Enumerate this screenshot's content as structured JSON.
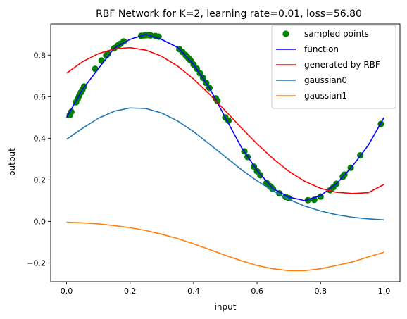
{
  "chart_data": {
    "type": "line",
    "title": "RBF Network for K=2, learning rate=0.01, loss=56.80",
    "xlabel": "input",
    "ylabel": "output",
    "xlim": [
      -0.05,
      1.05
    ],
    "ylim": [
      -0.29,
      0.95
    ],
    "xticks": [
      0.0,
      0.2,
      0.4,
      0.6,
      0.8,
      1.0
    ],
    "xtick_labels": [
      "0.0",
      "0.2",
      "0.4",
      "0.6",
      "0.8",
      "1.0"
    ],
    "yticks": [
      -0.2,
      0.0,
      0.2,
      0.4,
      0.6,
      0.8
    ],
    "ytick_labels": [
      "−0.2",
      "0.0",
      "0.2",
      "0.4",
      "0.6",
      "0.8"
    ],
    "grid": false,
    "legend_position": "top-right",
    "series": [
      {
        "name": "sampled points",
        "kind": "scatter",
        "color": "#008000",
        "x": [
          0.01,
          0.015,
          0.03,
          0.035,
          0.04,
          0.045,
          0.05,
          0.055,
          0.09,
          0.11,
          0.125,
          0.13,
          0.15,
          0.16,
          0.165,
          0.17,
          0.18,
          0.235,
          0.245,
          0.25,
          0.26,
          0.265,
          0.28,
          0.29,
          0.355,
          0.365,
          0.375,
          0.38,
          0.385,
          0.39,
          0.4,
          0.41,
          0.42,
          0.43,
          0.44,
          0.45,
          0.47,
          0.475,
          0.5,
          0.51,
          0.56,
          0.57,
          0.59,
          0.6,
          0.61,
          0.63,
          0.64,
          0.645,
          0.65,
          0.67,
          0.69,
          0.7,
          0.76,
          0.78,
          0.8,
          0.83,
          0.84,
          0.85,
          0.87,
          0.875,
          0.895,
          0.925,
          0.99
        ],
        "y": [
          0.511,
          0.527,
          0.574,
          0.589,
          0.605,
          0.62,
          0.634,
          0.649,
          0.734,
          0.774,
          0.799,
          0.806,
          0.833,
          0.845,
          0.85,
          0.855,
          0.866,
          0.893,
          0.895,
          0.896,
          0.896,
          0.895,
          0.892,
          0.889,
          0.829,
          0.815,
          0.8,
          0.792,
          0.783,
          0.775,
          0.755,
          0.735,
          0.713,
          0.69,
          0.666,
          0.642,
          0.592,
          0.58,
          0.5,
          0.485,
          0.337,
          0.31,
          0.263,
          0.241,
          0.222,
          0.185,
          0.17,
          0.163,
          0.156,
          0.135,
          0.118,
          0.112,
          0.102,
          0.104,
          0.119,
          0.15,
          0.164,
          0.181,
          0.215,
          0.225,
          0.258,
          0.318,
          0.469
        ]
      },
      {
        "name": "function",
        "kind": "line",
        "color": "#0000ff",
        "x": [
          0.0,
          0.05,
          0.1,
          0.15,
          0.2,
          0.25,
          0.3,
          0.35,
          0.4,
          0.45,
          0.5,
          0.55,
          0.6,
          0.65,
          0.7,
          0.75,
          0.8,
          0.85,
          0.9,
          0.95,
          1.0
        ],
        "y": [
          0.5,
          0.634,
          0.735,
          0.833,
          0.876,
          0.9,
          0.875,
          0.837,
          0.755,
          0.642,
          0.5,
          0.358,
          0.245,
          0.158,
          0.117,
          0.1,
          0.124,
          0.181,
          0.265,
          0.366,
          0.5
        ]
      },
      {
        "name": "generated by RBF",
        "kind": "line",
        "color": "#ff0000",
        "x": [
          0.0,
          0.05,
          0.1,
          0.15,
          0.2,
          0.25,
          0.3,
          0.35,
          0.4,
          0.45,
          0.5,
          0.55,
          0.6,
          0.65,
          0.7,
          0.75,
          0.8,
          0.85,
          0.9,
          0.95,
          1.0
        ],
        "y": [
          0.713,
          0.768,
          0.807,
          0.83,
          0.836,
          0.824,
          0.794,
          0.747,
          0.685,
          0.612,
          0.532,
          0.451,
          0.373,
          0.302,
          0.241,
          0.193,
          0.159,
          0.14,
          0.134,
          0.138,
          0.178
        ]
      },
      {
        "name": "gaussian0",
        "kind": "line",
        "color": "#1f77b4",
        "x": [
          0.0,
          0.05,
          0.1,
          0.15,
          0.2,
          0.25,
          0.3,
          0.35,
          0.4,
          0.45,
          0.5,
          0.55,
          0.6,
          0.65,
          0.7,
          0.75,
          0.8,
          0.85,
          0.9,
          0.95,
          1.0
        ],
        "y": [
          0.395,
          0.448,
          0.496,
          0.53,
          0.546,
          0.543,
          0.521,
          0.483,
          0.432,
          0.372,
          0.311,
          0.25,
          0.195,
          0.147,
          0.106,
          0.074,
          0.05,
          0.032,
          0.02,
          0.012,
          0.007
        ]
      },
      {
        "name": "gaussian1",
        "kind": "line",
        "color": "#ff7f0e",
        "x": [
          0.0,
          0.05,
          0.1,
          0.15,
          0.2,
          0.25,
          0.3,
          0.35,
          0.4,
          0.45,
          0.5,
          0.55,
          0.6,
          0.65,
          0.7,
          0.75,
          0.8,
          0.85,
          0.9,
          0.95,
          1.0
        ],
        "y": [
          -0.004,
          -0.007,
          -0.012,
          -0.02,
          -0.03,
          -0.044,
          -0.062,
          -0.083,
          -0.108,
          -0.135,
          -0.163,
          -0.189,
          -0.212,
          -0.228,
          -0.237,
          -0.237,
          -0.228,
          -0.212,
          -0.195,
          -0.171,
          -0.148
        ]
      }
    ]
  }
}
